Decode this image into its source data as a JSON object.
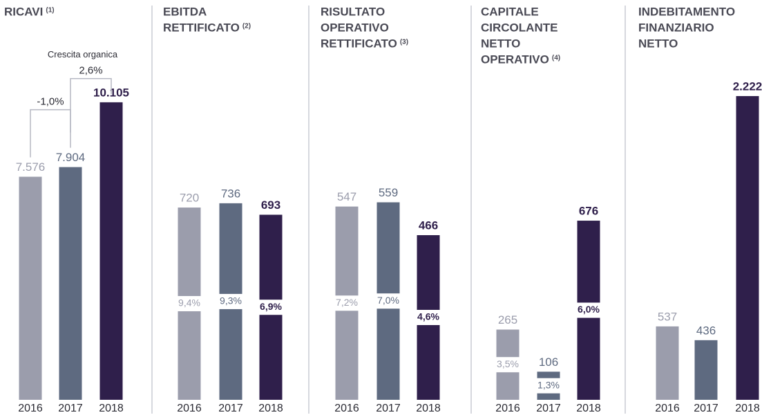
{
  "chart_data": [
    {
      "type": "bar",
      "title_lines": [
        "RICAVI"
      ],
      "note": "(1)",
      "categories": [
        "2016",
        "2017",
        "2018"
      ],
      "values": [
        7576,
        7904,
        10105
      ],
      "value_labels": [
        "7.576",
        "7.904",
        "10.105"
      ],
      "colors": [
        "#9b9dac",
        "#5e6a80",
        "#2f1f4b"
      ],
      "ylim": [
        0,
        11700
      ],
      "growth_title": "Crescita organica",
      "growth": [
        "-1,0%",
        "2,6%"
      ]
    },
    {
      "type": "bar",
      "title_lines": [
        "EBITDA",
        "RETTIFICATO"
      ],
      "note": "(2)",
      "categories": [
        "2016",
        "2017",
        "2018"
      ],
      "values": [
        720,
        736,
        693
      ],
      "value_labels": [
        "720",
        "736",
        "693"
      ],
      "colors": [
        "#9b9dac",
        "#5e6a80",
        "#2f1f4b"
      ],
      "ylim": [
        0,
        1290
      ],
      "margins": [
        "9,4%",
        "9,3%",
        "6,9%"
      ]
    },
    {
      "type": "bar",
      "title_lines": [
        "RISULTATO",
        "OPERATIVO",
        "RETTIFICATO"
      ],
      "note": "(3)",
      "categories": [
        "2016",
        "2017",
        "2018"
      ],
      "values": [
        547,
        559,
        466
      ],
      "value_labels": [
        "547",
        "559",
        "466"
      ],
      "colors": [
        "#9b9dac",
        "#5e6a80",
        "#2f1f4b"
      ],
      "ylim": [
        0,
        975
      ],
      "margins": [
        "7,2%",
        "7,0%",
        "4,6%"
      ]
    },
    {
      "type": "bar",
      "title_lines": [
        "CAPITALE",
        "CIRCOLANTE",
        "NETTO",
        "OPERATIVO"
      ],
      "note": "(4)",
      "categories": [
        "2016",
        "2017",
        "2018"
      ],
      "values": [
        265,
        106,
        676
      ],
      "value_labels": [
        "265",
        "106",
        "676"
      ],
      "colors": [
        "#9b9dac",
        "#5e6a80",
        "#2f1f4b"
      ],
      "ylim": [
        0,
        1300
      ],
      "margins": [
        "3,5%",
        "1,3%",
        "6,0%"
      ]
    },
    {
      "type": "bar",
      "title_lines": [
        "INDEBITAMENTO",
        "FINANZIARIO",
        "NETTO"
      ],
      "categories": [
        "2016",
        "2017",
        "2018"
      ],
      "values": [
        537,
        436,
        2222
      ],
      "value_labels": [
        "537",
        "436",
        "2.222"
      ],
      "colors": [
        "#9b9dac",
        "#5e6a80",
        "#2f1f4b"
      ],
      "ylim": [
        0,
        2520
      ]
    }
  ]
}
